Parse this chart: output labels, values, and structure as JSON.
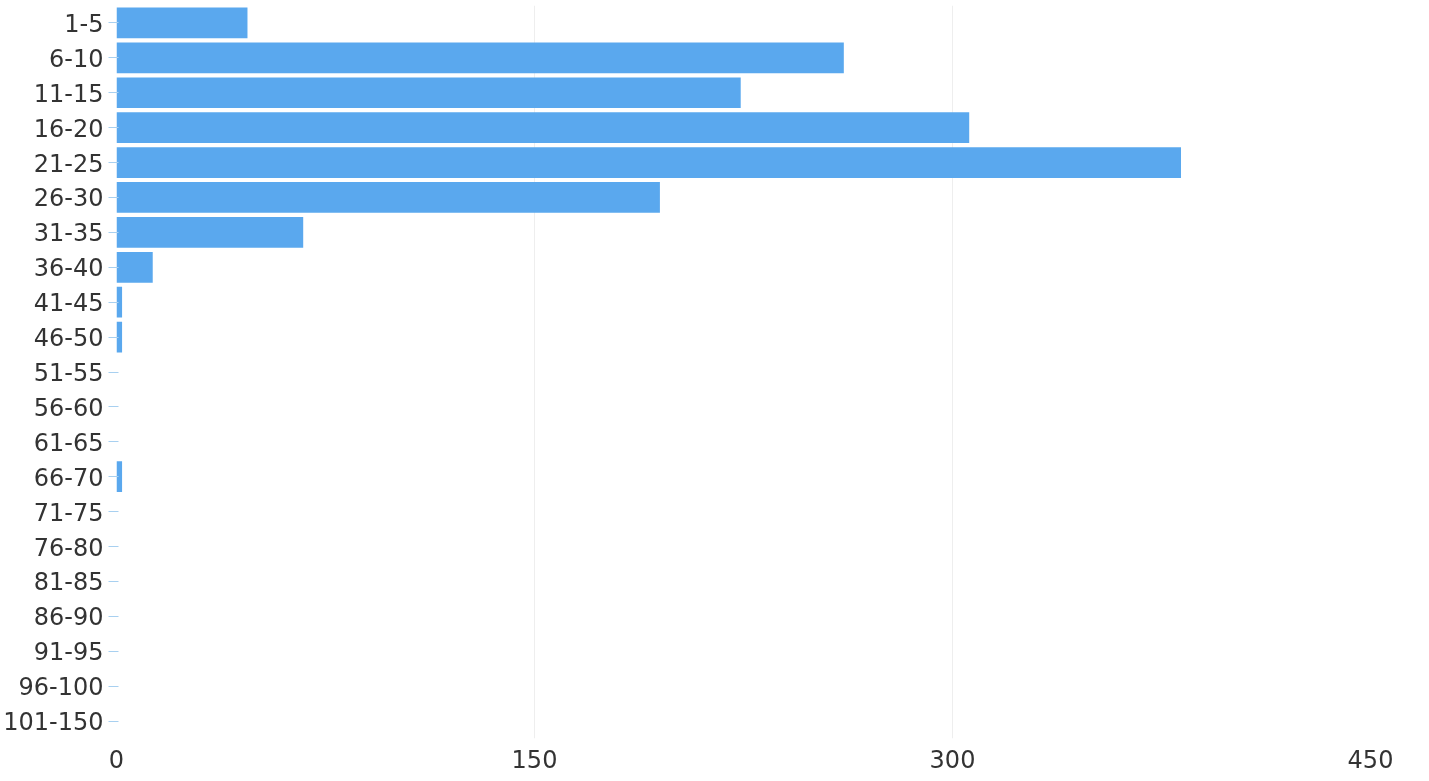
{
  "chart_data": {
    "type": "bar",
    "orientation": "horizontal",
    "categories": [
      "1-5",
      "6-10",
      "11-15",
      "16-20",
      "21-25",
      "26-30",
      "31-35",
      "36-40",
      "41-45",
      "46-50",
      "51-55",
      "56-60",
      "61-65",
      "66-70",
      "71-75",
      "76-80",
      "81-85",
      "86-90",
      "91-95",
      "96-100",
      "101-150"
    ],
    "values": [
      47,
      261,
      224,
      306,
      382,
      195,
      67,
      13,
      2,
      2,
      0,
      0,
      0,
      2,
      0,
      0,
      0,
      0,
      0,
      0,
      0
    ],
    "color": "#5aa8ee",
    "xlim": [
      0,
      450
    ],
    "xticks": [
      0,
      150,
      300,
      450
    ],
    "grid": "x"
  }
}
